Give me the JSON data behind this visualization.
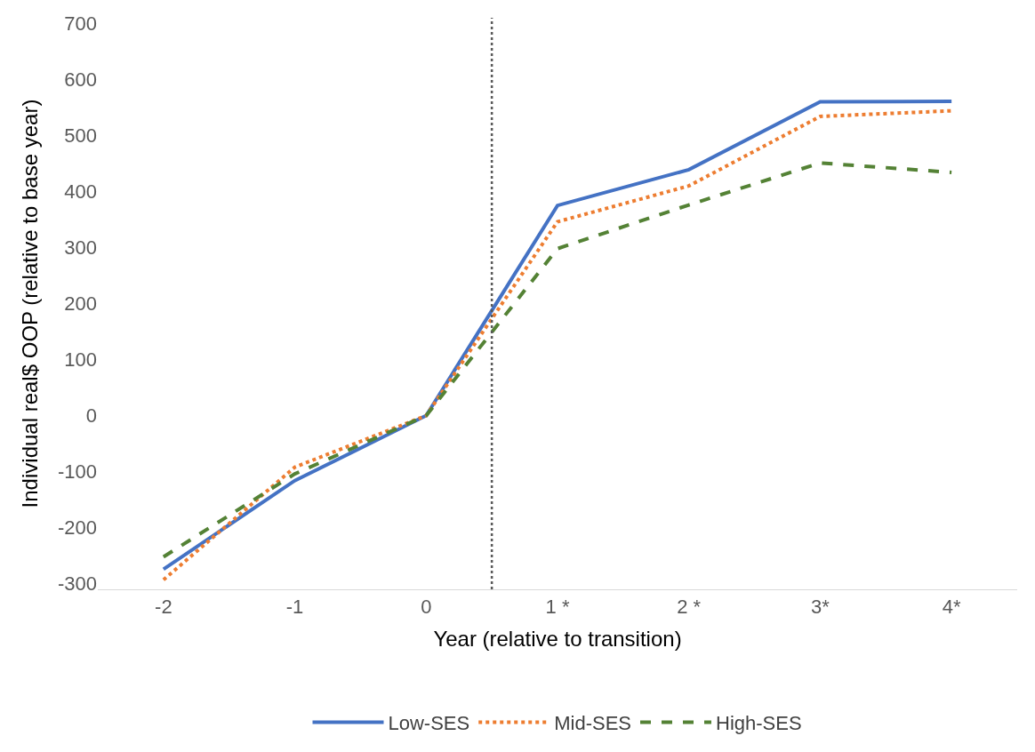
{
  "chart_data": {
    "type": "line",
    "xlabel": "Year (relative to transition)",
    "ylabel": "Individual real$ OOP (relative to base year)",
    "x": [
      -2,
      -1,
      0,
      1,
      2,
      3,
      4
    ],
    "xlim": [
      -2.5,
      4.5
    ],
    "xticks": [
      -2,
      -1,
      0,
      {
        "value": 1,
        "label": "1 *"
      },
      {
        "value": 2,
        "label": "2 *"
      },
      {
        "value": 3,
        "label": "3*"
      },
      {
        "value": 4,
        "label": "4*"
      }
    ],
    "ylim": [
      -310,
      710
    ],
    "yticks": [
      -300,
      -200,
      -100,
      0,
      100,
      200,
      300,
      400,
      500,
      600,
      700
    ],
    "grid": false,
    "legend": "bottom",
    "marker": "none",
    "ref_lines": [
      {
        "axis": "x",
        "value": 0.5,
        "color": "#595959",
        "line_style": "dotted"
      }
    ],
    "series": [
      {
        "name": "Low-SES",
        "color": "#4472c4",
        "line_style": "solid",
        "values": [
          -274,
          -116,
          0,
          375,
          439,
          560,
          561
        ]
      },
      {
        "name": "Mid-SES",
        "color": "#ed7d31",
        "line_style": "dotted",
        "values": [
          -293,
          -92,
          0,
          346,
          410,
          534,
          544
        ]
      },
      {
        "name": "High-SES",
        "color": "#548235",
        "line_style": "dashed",
        "values": [
          -252,
          -104,
          0,
          298,
          376,
          451,
          434
        ]
      }
    ]
  }
}
